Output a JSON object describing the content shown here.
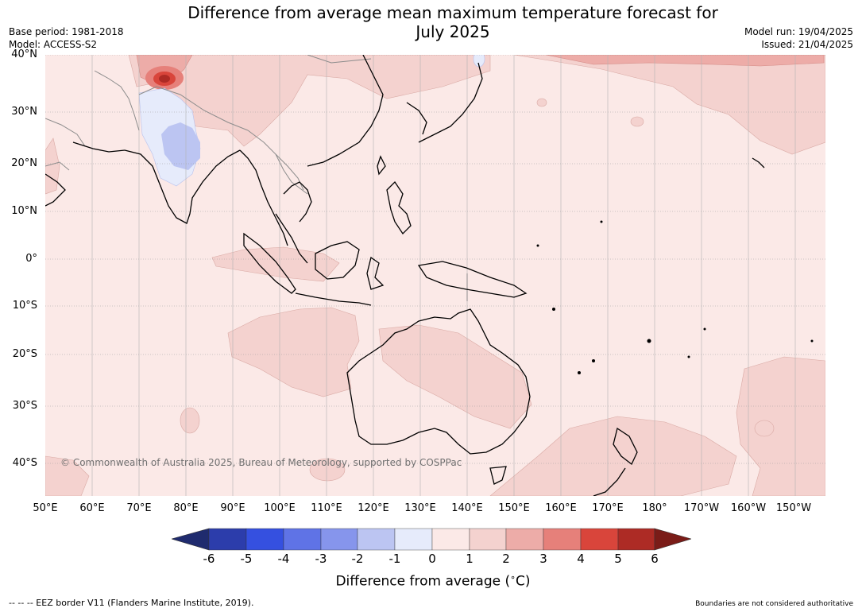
{
  "header": {
    "title_line1": "Difference from average mean maximum temperature forecast for",
    "title_line2": "July 2025",
    "base_period": "Base period: 1981-2018",
    "model": "Model: ACCESS-S2",
    "model_run": "Model run: 19/04/2025",
    "issued": "Issued: 21/04/2025"
  },
  "map": {
    "copyright": "© Commonwealth of Australia 2025, Bureau of Meteorology, supported by COSPPac",
    "background_color": "#fbe9e7",
    "gridline_color": "#999999",
    "coastline_color": "#000000",
    "border_color": "#8c8c8c"
  },
  "axes": {
    "lat_labels": [
      "40°N",
      "30°N",
      "20°N",
      "10°N",
      "0°",
      "10°S",
      "20°S",
      "30°S",
      "40°S"
    ],
    "lon_labels": [
      "50°E",
      "60°E",
      "70°E",
      "80°E",
      "90°E",
      "100°E",
      "110°E",
      "120°E",
      "130°E",
      "140°E",
      "150°E",
      "160°E",
      "170°E",
      "180°",
      "170°W",
      "160°W",
      "150°W"
    ]
  },
  "colorbar": {
    "colors": [
      "#1f2b6e",
      "#2c44b0",
      "#3550e0",
      "#5f73e6",
      "#8695ec",
      "#bcc5f2",
      "#e6ebfb",
      "#fbe9e7",
      "#f4d2cf",
      "#edaca8",
      "#e6807a",
      "#d9453b",
      "#ad2b25",
      "#7a1c18"
    ],
    "tick_labels": [
      "-6",
      "-5",
      "-4",
      "-3",
      "-2",
      "-1",
      "0",
      "1",
      "2",
      "3",
      "4",
      "5",
      "6"
    ],
    "label": "Difference from average ($^\\circ$C)",
    "label_text": "Difference from average (",
    "label_unit": "C)",
    "label_degree": "∘"
  },
  "footer": {
    "eez_text": "--  --  -- EEZ border V11 (Flanders Marine Institute, 2019).",
    "disclaimer": "Boundaries are not considered authoritative"
  }
}
